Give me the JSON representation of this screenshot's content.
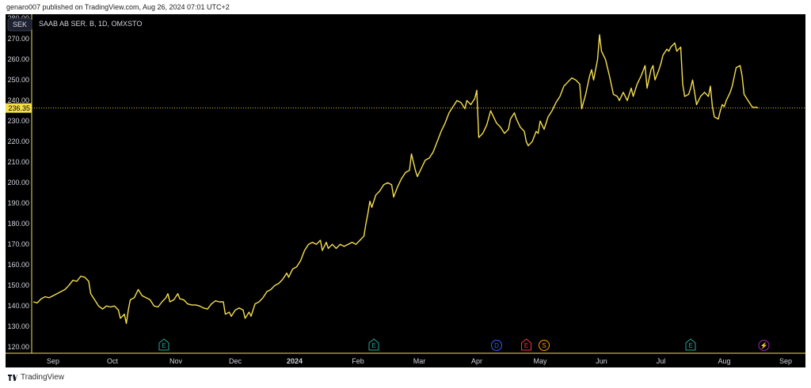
{
  "header": {
    "publish_text": "genaro007 published on TradingView.com, Aug 26, 2024 07:01 UTC+2"
  },
  "footer": {
    "brand": "TradingView"
  },
  "colors": {
    "background": "#000000",
    "line": "#f5df4d",
    "text": "#d1d4dc",
    "axis": "#f5df4d"
  },
  "chart_data": {
    "type": "line",
    "symbol": "SAAB AB SER. B, 1D, OMXSTO",
    "currency": "SEK",
    "last_price": "236.35",
    "ylim": [
      117,
      282
    ],
    "y_ticks": [
      "120.00",
      "130.00",
      "140.00",
      "150.00",
      "160.00",
      "170.00",
      "180.00",
      "190.00",
      "200.00",
      "210.00",
      "220.00",
      "230.00",
      "240.00",
      "250.00",
      "260.00",
      "270.00",
      "280.00"
    ],
    "x_ticks": [
      {
        "label": "Sep",
        "t": 10
      },
      {
        "label": "Oct",
        "t": 40
      },
      {
        "label": "Nov",
        "t": 72
      },
      {
        "label": "Dec",
        "t": 102
      },
      {
        "label": "2024",
        "t": 132,
        "bold": true
      },
      {
        "label": "Feb",
        "t": 164
      },
      {
        "label": "Mar",
        "t": 195
      },
      {
        "label": "Apr",
        "t": 224
      },
      {
        "label": "May",
        "t": 256
      },
      {
        "label": "Jun",
        "t": 287
      },
      {
        "label": "Jul",
        "t": 317
      },
      {
        "label": "Aug",
        "t": 349
      },
      {
        "label": "Sep",
        "t": 380
      }
    ],
    "t_range": [
      0,
      390
    ],
    "events": [
      {
        "label": "E",
        "t": 66,
        "color": "#26a69a"
      },
      {
        "label": "E",
        "t": 172,
        "color": "#26a69a"
      },
      {
        "label": "D",
        "t": 234,
        "color": "#2962ff"
      },
      {
        "label": "E",
        "t": 249,
        "color": "#f23645"
      },
      {
        "label": "S",
        "t": 258,
        "color": "#ff9800"
      },
      {
        "label": "E",
        "t": 332,
        "color": "#26a69a"
      },
      {
        "label": "⚡",
        "t": 369,
        "color": "#9c27b0"
      }
    ],
    "series": [
      {
        "points": [
          [
            0,
            142
          ],
          [
            2,
            141.5
          ],
          [
            4,
            143.5
          ],
          [
            6,
            144.5
          ],
          [
            8,
            144
          ],
          [
            10,
            145
          ],
          [
            12,
            146
          ],
          [
            14,
            147
          ],
          [
            16,
            148
          ],
          [
            18,
            150
          ],
          [
            20,
            152.5
          ],
          [
            22,
            152
          ],
          [
            24,
            154.5
          ],
          [
            26,
            154
          ],
          [
            28,
            152
          ],
          [
            29,
            146
          ],
          [
            31,
            143
          ],
          [
            33,
            140
          ],
          [
            35,
            138.5
          ],
          [
            37,
            140
          ],
          [
            39,
            139.5
          ],
          [
            41,
            140
          ],
          [
            43,
            138
          ],
          [
            44,
            134
          ],
          [
            46,
            136
          ],
          [
            47,
            131.5
          ],
          [
            48,
            138
          ],
          [
            49,
            143
          ],
          [
            51,
            144
          ],
          [
            53,
            148
          ],
          [
            55,
            145
          ],
          [
            57,
            144
          ],
          [
            59,
            143
          ],
          [
            61,
            140
          ],
          [
            63,
            139.5
          ],
          [
            65,
            142
          ],
          [
            67,
            144
          ],
          [
            68,
            146
          ],
          [
            69,
            142
          ],
          [
            71,
            143
          ],
          [
            73,
            146
          ],
          [
            74,
            143.5
          ],
          [
            76,
            143
          ],
          [
            78,
            141
          ],
          [
            80,
            140.5
          ],
          [
            82,
            140.5
          ],
          [
            84,
            140
          ],
          [
            86,
            139
          ],
          [
            88,
            138.5
          ],
          [
            90,
            141
          ],
          [
            92,
            142.5
          ],
          [
            94,
            142
          ],
          [
            96,
            142
          ],
          [
            97,
            136
          ],
          [
            99,
            137
          ],
          [
            100,
            135
          ],
          [
            102,
            138
          ],
          [
            104,
            139
          ],
          [
            106,
            138
          ],
          [
            107,
            134
          ],
          [
            109,
            137
          ],
          [
            110,
            135
          ],
          [
            112,
            141
          ],
          [
            114,
            142
          ],
          [
            116,
            144
          ],
          [
            118,
            147
          ],
          [
            120,
            148
          ],
          [
            122,
            150
          ],
          [
            124,
            151
          ],
          [
            126,
            153
          ],
          [
            128,
            156
          ],
          [
            129,
            154
          ],
          [
            131,
            158
          ],
          [
            133,
            159
          ],
          [
            135,
            162
          ],
          [
            137,
            167
          ],
          [
            139,
            170
          ],
          [
            141,
            171
          ],
          [
            143,
            170
          ],
          [
            145,
            172
          ],
          [
            146,
            167
          ],
          [
            148,
            171
          ],
          [
            149,
            168
          ],
          [
            151,
            170
          ],
          [
            153,
            168
          ],
          [
            155,
            170
          ],
          [
            157,
            169
          ],
          [
            159,
            170
          ],
          [
            161,
            171
          ],
          [
            163,
            170
          ],
          [
            165,
            172
          ],
          [
            167,
            174
          ],
          [
            168,
            180
          ],
          [
            169,
            185
          ],
          [
            170,
            191
          ],
          [
            171,
            188
          ],
          [
            173,
            194
          ],
          [
            175,
            196
          ],
          [
            177,
            199
          ],
          [
            179,
            200
          ],
          [
            181,
            199
          ],
          [
            182,
            193
          ],
          [
            184,
            198
          ],
          [
            186,
            202
          ],
          [
            188,
            205
          ],
          [
            190,
            206
          ],
          [
            191,
            214
          ],
          [
            193,
            206
          ],
          [
            194,
            203
          ],
          [
            196,
            207
          ],
          [
            198,
            211
          ],
          [
            200,
            212
          ],
          [
            202,
            215
          ],
          [
            204,
            220
          ],
          [
            206,
            225
          ],
          [
            208,
            229
          ],
          [
            210,
            234
          ],
          [
            212,
            237
          ],
          [
            214,
            240
          ],
          [
            216,
            239
          ],
          [
            218,
            236
          ],
          [
            219,
            240
          ],
          [
            221,
            238
          ],
          [
            223,
            241
          ],
          [
            224,
            245
          ],
          [
            225,
            222
          ],
          [
            227,
            224
          ],
          [
            229,
            228
          ],
          [
            231,
            235
          ],
          [
            232,
            233
          ],
          [
            234,
            229
          ],
          [
            236,
            227
          ],
          [
            238,
            224
          ],
          [
            240,
            226
          ],
          [
            241,
            231
          ],
          [
            243,
            234
          ],
          [
            244,
            231
          ],
          [
            246,
            227
          ],
          [
            248,
            225
          ],
          [
            249,
            220
          ],
          [
            250,
            218
          ],
          [
            252,
            220
          ],
          [
            254,
            225
          ],
          [
            255,
            224
          ],
          [
            256,
            230
          ],
          [
            258,
            226
          ],
          [
            260,
            232
          ],
          [
            262,
            235
          ],
          [
            264,
            239
          ],
          [
            266,
            242
          ],
          [
            268,
            247
          ],
          [
            270,
            249
          ],
          [
            272,
            251
          ],
          [
            274,
            250
          ],
          [
            276,
            248
          ],
          [
            277,
            236
          ],
          [
            279,
            243
          ],
          [
            281,
            252
          ],
          [
            282,
            255
          ],
          [
            283,
            250
          ],
          [
            285,
            260
          ],
          [
            286,
            272
          ],
          [
            287,
            264
          ],
          [
            289,
            260
          ],
          [
            291,
            252
          ],
          [
            293,
            243
          ],
          [
            295,
            242
          ],
          [
            296,
            240
          ],
          [
            298,
            244
          ],
          [
            300,
            240
          ],
          [
            302,
            246
          ],
          [
            303,
            242
          ],
          [
            305,
            248
          ],
          [
            307,
            252
          ],
          [
            309,
            257
          ],
          [
            310,
            246
          ],
          [
            312,
            255
          ],
          [
            313,
            257
          ],
          [
            314,
            250
          ],
          [
            316,
            255
          ],
          [
            317,
            258
          ],
          [
            318,
            262
          ],
          [
            320,
            265
          ],
          [
            321,
            264
          ],
          [
            322,
            266
          ],
          [
            324,
            268
          ],
          [
            325,
            264
          ],
          [
            327,
            266
          ],
          [
            328,
            248
          ],
          [
            329,
            242
          ],
          [
            331,
            243
          ],
          [
            332,
            246
          ],
          [
            333,
            250
          ],
          [
            334,
            244
          ],
          [
            335,
            238
          ],
          [
            337,
            242
          ],
          [
            339,
            244
          ],
          [
            341,
            242
          ],
          [
            342,
            247
          ],
          [
            343,
            237
          ],
          [
            344,
            232
          ],
          [
            346,
            231
          ],
          [
            347,
            235
          ],
          [
            348,
            238
          ],
          [
            349,
            237
          ],
          [
            350,
            240
          ],
          [
            352,
            244
          ],
          [
            353,
            247
          ],
          [
            355,
            256
          ],
          [
            357,
            257
          ],
          [
            358,
            252
          ],
          [
            359,
            243
          ],
          [
            361,
            240
          ],
          [
            363,
            237
          ],
          [
            364,
            236.5
          ],
          [
            365,
            236.8
          ],
          [
            366,
            236.35
          ]
        ]
      }
    ]
  }
}
